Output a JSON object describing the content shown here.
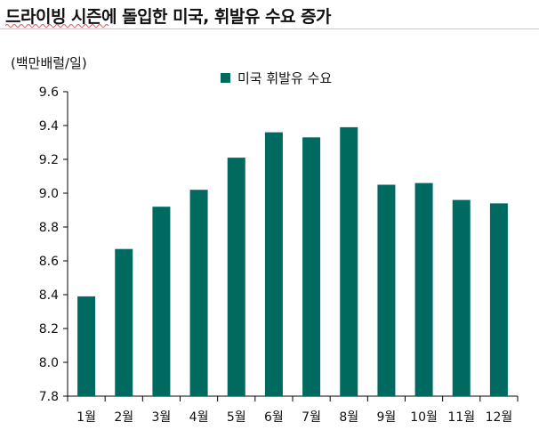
{
  "title": "드라이빙 시즌에 돌입한 미국, 휘발유 수요 증가",
  "unit_label": "(백만배럴/일)",
  "colors": {
    "bar": "#006a60",
    "axis": "#000000"
  },
  "chart_data": {
    "type": "bar",
    "categories": [
      "1월",
      "2월",
      "3월",
      "4월",
      "5월",
      "6월",
      "7월",
      "8월",
      "9월",
      "10월",
      "11월",
      "12월"
    ],
    "series": [
      {
        "name": "미국 휘발유 수요",
        "values": [
          8.39,
          8.67,
          8.92,
          9.02,
          9.21,
          9.36,
          9.33,
          9.39,
          9.05,
          9.06,
          8.96,
          8.94
        ]
      }
    ],
    "ylim": [
      7.8,
      9.6
    ],
    "yticks": [
      "7.8",
      "8.0",
      "8.2",
      "8.4",
      "8.6",
      "8.8",
      "9.0",
      "9.2",
      "9.4",
      "9.6"
    ],
    "grid": false,
    "legend_position": "top-center"
  }
}
